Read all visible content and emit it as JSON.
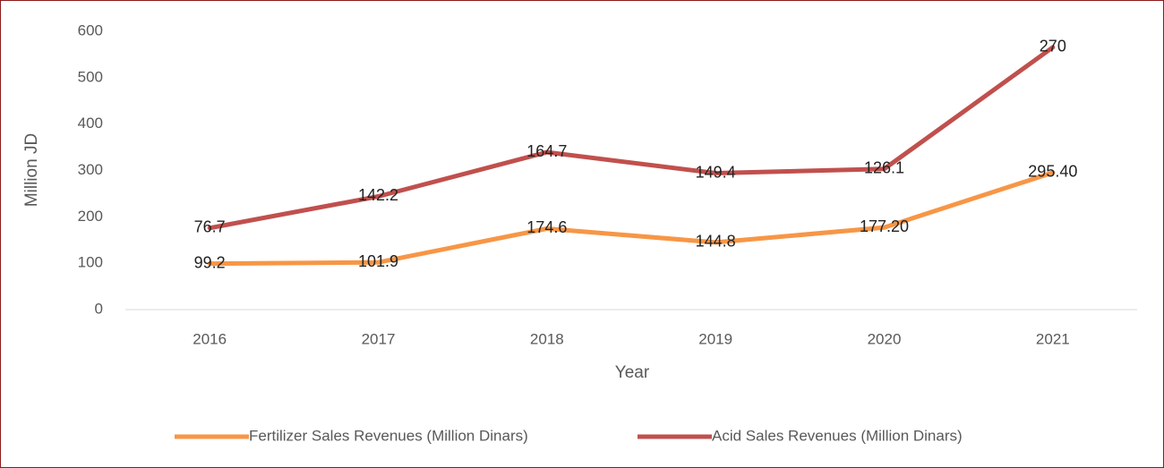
{
  "chart_data": {
    "type": "line",
    "stacked": true,
    "x_label": "Year",
    "y_label": "Million JD",
    "categories": [
      "2016",
      "2017",
      "2018",
      "2019",
      "2020",
      "2021"
    ],
    "series": [
      {
        "name": "Fertilizer Sales Revenues (Million Dinars)",
        "color": "#f79646",
        "values": [
          99.2,
          101.9,
          174.6,
          144.8,
          177.2,
          295.4
        ],
        "value_labels": [
          "99.2",
          "101.9",
          "174.6",
          "144.8",
          "177.20",
          "295.40"
        ]
      },
      {
        "name": "Acid Sales Revenues (Million Dinars)",
        "color": "#c0504d",
        "values": [
          76.7,
          142.2,
          164.7,
          149.4,
          126.1,
          270
        ]
      }
    ],
    "ylim": [
      0,
      600
    ],
    "yticks": [
      0,
      100,
      200,
      300,
      400,
      500,
      600
    ],
    "legend": "bottom"
  }
}
